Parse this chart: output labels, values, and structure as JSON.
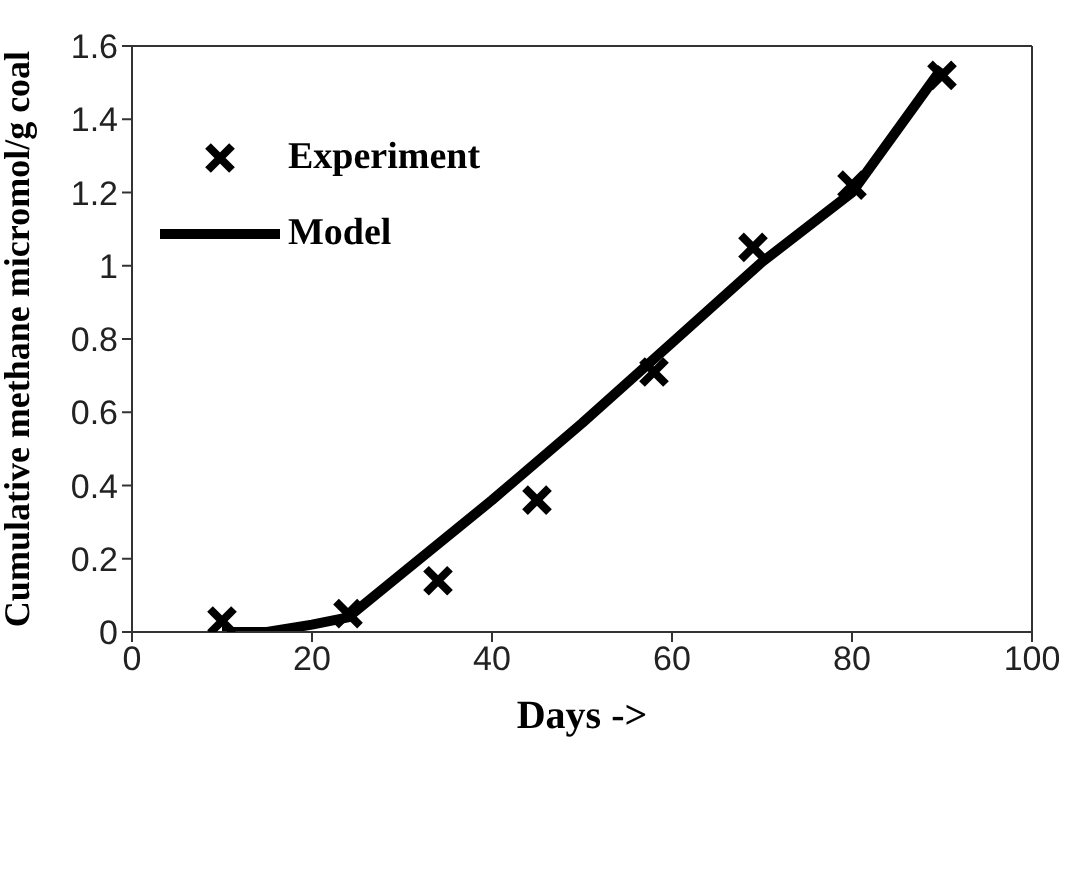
{
  "chart_data": {
    "type": "line",
    "xlabel": "Days ->",
    "ylabel": "Cumulative methane micromol/g coal",
    "xlim": [
      0,
      100
    ],
    "xticks": [
      0,
      20,
      40,
      60,
      80,
      100
    ],
    "ylim": [
      0,
      1.6
    ],
    "yticks": [
      0,
      0.2,
      0.4,
      0.6,
      0.8,
      1,
      1.2,
      1.4,
      1.6
    ],
    "grid": false,
    "legend": "top left",
    "series": [
      {
        "name": "Experiment",
        "type": "scatter",
        "marker": "cross",
        "color": "#000000",
        "x": [
          10,
          24,
          34,
          45,
          58,
          69,
          80,
          90
        ],
        "values": [
          0.03,
          0.05,
          0.14,
          0.36,
          0.71,
          1.05,
          1.22,
          1.52
        ]
      },
      {
        "name": "Model",
        "marker": "none",
        "line_style": "solid",
        "color": "#000000",
        "x": [
          10,
          15,
          20,
          24,
          30,
          40,
          50,
          60,
          70,
          80,
          90
        ],
        "values": [
          0.0,
          0.0,
          0.02,
          0.04,
          0.16,
          0.36,
          0.57,
          0.79,
          1.01,
          1.2,
          1.54
        ]
      }
    ]
  }
}
